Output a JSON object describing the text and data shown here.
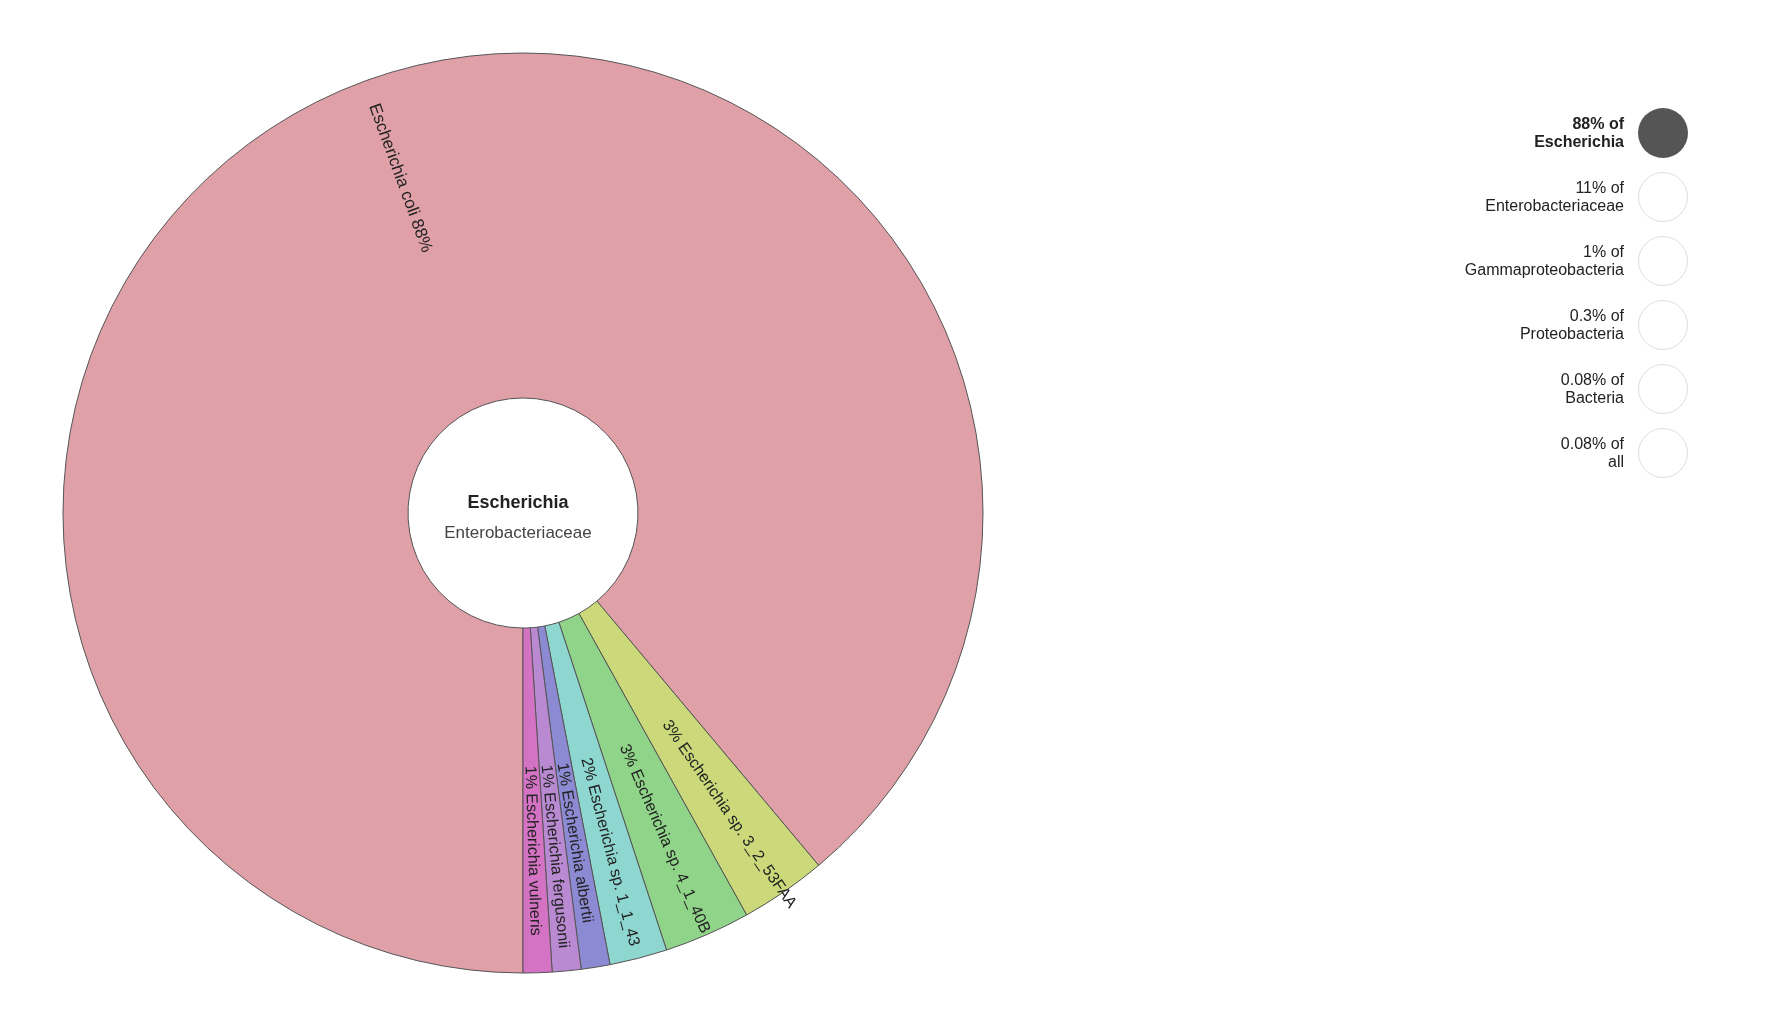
{
  "chart_data": {
    "type": "donut",
    "title": "Escherichia",
    "subtitle": "Enterobacteriaceae",
    "categories": [
      "Escherichia coli",
      "Escherichia sp. 3_2_53FAA",
      "Escherichia sp. 4_1_40B",
      "Escherichia sp. 1_1_43",
      "Escherichia albertii",
      "Escherichia fergusonii",
      "Escherichia vulneris"
    ],
    "values": [
      88,
      3,
      3,
      2,
      1,
      1,
      1
    ],
    "value_labels": [
      "88%",
      "3%",
      "3%",
      "2%",
      "1%",
      "1%",
      "1%"
    ],
    "colors": [
      "#e0a0a8",
      "#cbd97a",
      "#8fd488",
      "#8ed6d0",
      "#8c8ad2",
      "#b98ad2",
      "#d472c4"
    ],
    "annotations": [
      "88% of\nEscherichia",
      "11% of\nEnterobacteriaceae",
      "1% of\nGammaproteobacteria",
      "0.3% of\nProteobacteria",
      "0.08% of\nBacteria",
      "0.08% of\nall"
    ]
  }
}
